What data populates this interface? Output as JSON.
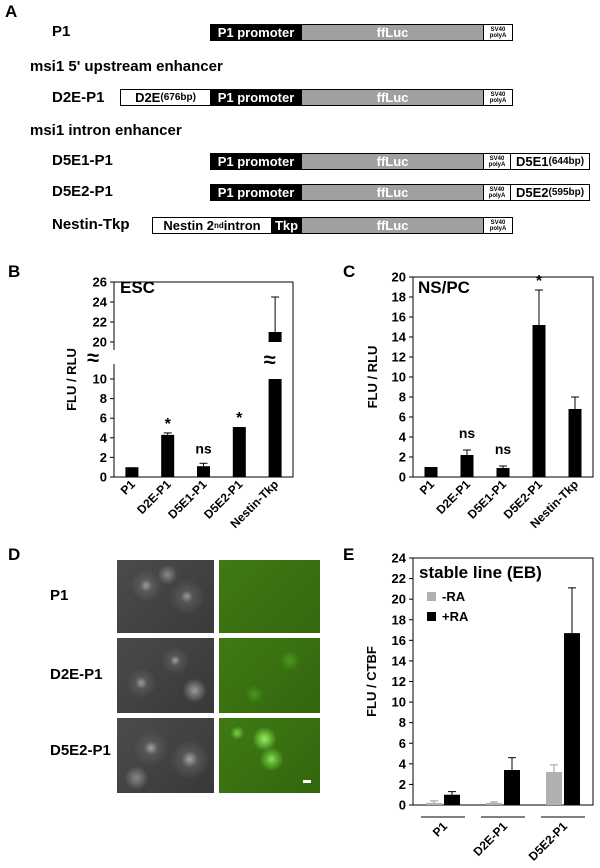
{
  "panel_a": {
    "label": "A",
    "p1": {
      "name": "P1",
      "promoter": "P1 promoter",
      "luc": "ffLuc",
      "sv40_1": "SV40",
      "sv40_2": "polyA"
    },
    "upstream_title": "msi1 5' upstream enhancer",
    "d2e": {
      "name": "D2E-P1",
      "enh": "D2E",
      "enh_size": "(676bp)",
      "promoter": "P1 promoter",
      "luc": "ffLuc",
      "sv40_1": "SV40",
      "sv40_2": "polyA"
    },
    "intron_title": "msi1 intron enhancer",
    "d5e1": {
      "name": "D5E1-P1",
      "promoter": "P1 promoter",
      "luc": "ffLuc",
      "sv40_1": "SV40",
      "sv40_2": "polyA",
      "enh": "D5E1",
      "enh_size": "(644bp)"
    },
    "d5e2": {
      "name": "D5E2-P1",
      "promoter": "P1 promoter",
      "luc": "ffLuc",
      "sv40_1": "SV40",
      "sv40_2": "polyA",
      "enh": "D5E2",
      "enh_size": "(595bp)"
    },
    "nestin": {
      "name": "Nestin-Tkp",
      "intron_pre": "Nestin 2",
      "intron_sup": "nd",
      "intron_post": " intron",
      "tkp": "Tkp",
      "luc": "ffLuc",
      "sv40_1": "SV40",
      "sv40_2": "polyA"
    }
  },
  "panel_b": {
    "label": "B",
    "title": "ESC"
  },
  "panel_c": {
    "label": "C",
    "title": "NS/PC"
  },
  "panel_d": {
    "label": "D",
    "rows": [
      "P1",
      "D2E-P1",
      "D5E2-P1"
    ]
  },
  "panel_e": {
    "label": "E",
    "title": "stable line (EB)"
  },
  "chart_data": [
    {
      "type": "bar",
      "panel": "B",
      "title": "ESC",
      "ylabel": "FLU / RLU",
      "categories": [
        "P1",
        "D2E-P1",
        "D5E1-P1",
        "D5E2-P1",
        "Nestin-Tkp"
      ],
      "values": [
        1.0,
        4.3,
        1.1,
        5.1,
        21.0
      ],
      "errors": [
        0,
        0.2,
        0.3,
        0,
        3.5
      ],
      "annotations": [
        "",
        "*",
        "ns",
        "*",
        ""
      ],
      "axis_break": true,
      "ylim_lower": [
        0,
        10
      ],
      "ylim_upper": [
        20,
        26
      ],
      "yticks": [
        0,
        2,
        4,
        6,
        8,
        10,
        20,
        22,
        24,
        26
      ]
    },
    {
      "type": "bar",
      "panel": "C",
      "title": "NS/PC",
      "ylabel": "FLU / RLU",
      "categories": [
        "P1",
        "D2E-P1",
        "D5E1-P1",
        "D5E2-P1",
        "Nestin-Tkp"
      ],
      "values": [
        1.0,
        2.2,
        0.9,
        15.2,
        6.8
      ],
      "errors": [
        0,
        0.5,
        0.2,
        3.5,
        1.2
      ],
      "annotations": [
        "",
        "ns",
        "ns",
        "*",
        ""
      ],
      "ylim": [
        0,
        20
      ],
      "yticks": [
        0,
        2,
        4,
        6,
        8,
        10,
        12,
        14,
        16,
        18,
        20
      ]
    },
    {
      "type": "bar",
      "panel": "E",
      "title": "stable line (EB)",
      "ylabel": "FLU / CTBF",
      "categories": [
        "P1",
        "D2E-P1",
        "D5E2-P1"
      ],
      "series": [
        {
          "name": "-RA",
          "color": "#b0b0b0",
          "values": [
            0.2,
            0.2,
            3.2
          ],
          "errors": [
            0.2,
            0.1,
            0.7
          ]
        },
        {
          "name": "+RA",
          "color": "#000000",
          "values": [
            1.0,
            3.4,
            16.7
          ],
          "errors": [
            0.3,
            1.2,
            4.4
          ]
        }
      ],
      "ylim": [
        0,
        24
      ],
      "yticks": [
        0,
        2,
        4,
        6,
        8,
        10,
        12,
        14,
        16,
        18,
        20,
        22,
        24
      ],
      "legend_position": "top-left"
    }
  ]
}
